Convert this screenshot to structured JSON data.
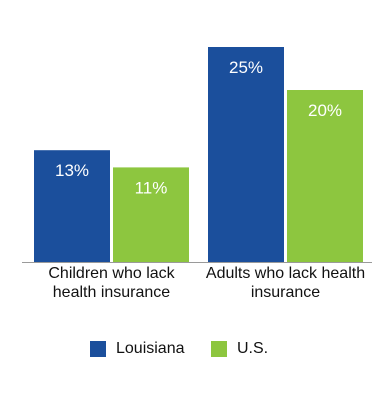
{
  "chart_data": {
    "type": "bar",
    "categories": [
      "Children who lack health insurance",
      "Adults who lack health insurance"
    ],
    "series": [
      {
        "name": "Louisiana",
        "color": "#1b4f9c",
        "values": [
          13,
          25
        ],
        "value_labels": [
          "13%",
          "25%"
        ]
      },
      {
        "name": "U.S.",
        "color": "#8dc63f",
        "values": [
          11,
          20
        ],
        "value_labels": [
          "11%",
          "20%"
        ]
      }
    ]
  }
}
